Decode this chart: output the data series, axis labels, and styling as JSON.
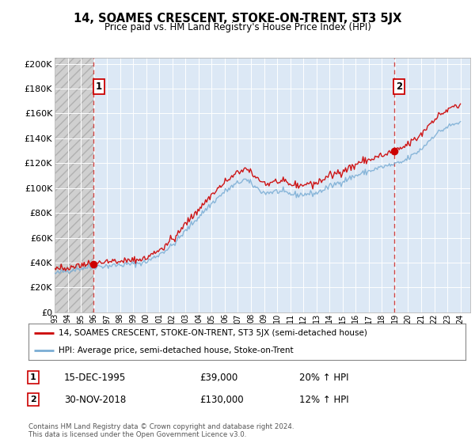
{
  "title": "14, SOAMES CRESCENT, STOKE-ON-TRENT, ST3 5JX",
  "subtitle": "Price paid vs. HM Land Registry's House Price Index (HPI)",
  "ylabel_ticks": [
    "£0",
    "£20K",
    "£40K",
    "£60K",
    "£80K",
    "£100K",
    "£120K",
    "£140K",
    "£160K",
    "£180K",
    "£200K"
  ],
  "ytick_values": [
    0,
    20000,
    40000,
    60000,
    80000,
    100000,
    120000,
    140000,
    160000,
    180000,
    200000
  ],
  "xlim_start": 1993.0,
  "xlim_end": 2024.75,
  "ylim": [
    0,
    205000
  ],
  "plot_bg_color": "#dce8f5",
  "hatch_bg_color": "#d0d0d0",
  "hatch_color": "#b0b0b0",
  "grid_color": "#ffffff",
  "sale1_x": 1995.96,
  "sale1_y": 39000,
  "sale1_label": "1",
  "sale1_date": "15-DEC-1995",
  "sale1_price": "£39,000",
  "sale1_hpi": "20% ↑ HPI",
  "sale2_x": 2018.92,
  "sale2_y": 130000,
  "sale2_label": "2",
  "sale2_date": "30-NOV-2018",
  "sale2_price": "£130,000",
  "sale2_hpi": "12% ↑ HPI",
  "legend_line1": "14, SOAMES CRESCENT, STOKE-ON-TRENT, ST3 5JX (semi-detached house)",
  "legend_line2": "HPI: Average price, semi-detached house, Stoke-on-Trent",
  "footer": "Contains HM Land Registry data © Crown copyright and database right 2024.\nThis data is licensed under the Open Government Licence v3.0.",
  "price_color": "#cc0000",
  "hpi_color": "#7aadd4",
  "annotation_box_color": "#cc0000",
  "dashed_line_color": "#cc3333",
  "xtick_years": [
    1993,
    1994,
    1995,
    1996,
    1997,
    1998,
    1999,
    2000,
    2001,
    2002,
    2003,
    2004,
    2005,
    2006,
    2007,
    2008,
    2009,
    2010,
    2011,
    2012,
    2013,
    2014,
    2015,
    2016,
    2017,
    2018,
    2019,
    2020,
    2021,
    2022,
    2023,
    2024
  ]
}
